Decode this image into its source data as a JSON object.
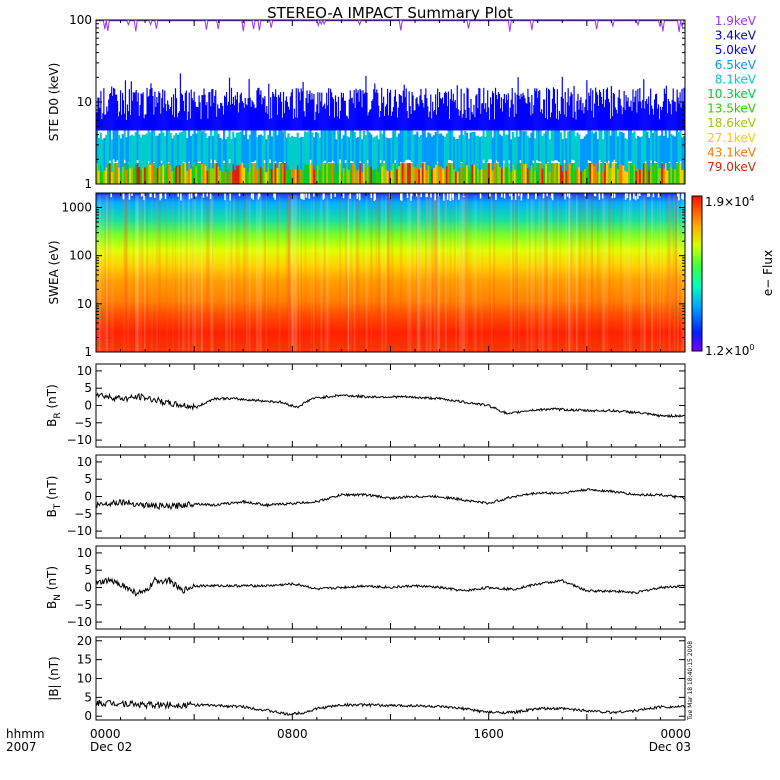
{
  "title": "STEREO-A IMPACT Summary Plot",
  "footer": {
    "left_top": "hhmm",
    "left_bottom": "2007"
  },
  "timestamp": "Tue Mar 18 18:40:15 2008",
  "chart_data": [
    {
      "type": "line",
      "id": "ste",
      "ylabel": "STE D0 (keV)",
      "scale": "log",
      "ylim": [
        1,
        100
      ],
      "yticks": [
        {
          "v": 1,
          "t": "1"
        },
        {
          "v": 10,
          "t": "10"
        },
        {
          "v": 100,
          "t": "100"
        }
      ],
      "legend": [
        {
          "name": "1.9keV",
          "color": "#9933ff",
          "level": 100
        },
        {
          "name": "3.4keV",
          "color": "#0000cc",
          "level": 15
        },
        {
          "name": "5.0keV",
          "color": "#0000ff",
          "level": 9
        },
        {
          "name": "6.5keV",
          "color": "#0099ff",
          "level": 3.2
        },
        {
          "name": "8.1keV",
          "color": "#00cccc",
          "level": 2.5
        },
        {
          "name": "10.3keV",
          "color": "#00cc33",
          "level": 2.0
        },
        {
          "name": "13.5keV",
          "color": "#33cc00",
          "level": 1.7
        },
        {
          "name": "18.6keV",
          "color": "#99cc00",
          "level": 1.5
        },
        {
          "name": "27.1keV",
          "color": "#ffcc00",
          "level": 1.3
        },
        {
          "name": "43.1keV",
          "color": "#ff7700",
          "level": 1.15
        },
        {
          "name": "79.0keV",
          "color": "#dd2200",
          "level": 1.05
        }
      ]
    },
    {
      "type": "heatmap",
      "id": "swea",
      "ylabel": "SWEA (eV)",
      "scale": "log",
      "ylim": [
        1,
        2000
      ],
      "yticks": [
        {
          "v": 1,
          "t": "1"
        },
        {
          "v": 10,
          "t": "10"
        },
        {
          "v": 100,
          "t": "100"
        },
        {
          "v": 1000,
          "t": "1000"
        }
      ],
      "colorbar": {
        "label": "e− Flux",
        "max_mant": "1.9×10",
        "max_exp": "4",
        "min_mant": "1.2×10",
        "min_exp": "0"
      }
    },
    {
      "type": "line",
      "id": "br",
      "ylabel_base": "B",
      "ylabel_sub": "R",
      "ylabel_unit": " (nT)",
      "ylim": [
        -12,
        12
      ],
      "yticks": [
        {
          "v": -10,
          "t": "−10"
        },
        {
          "v": -5,
          "t": "−5"
        },
        {
          "v": 0,
          "t": "0"
        },
        {
          "v": 5,
          "t": "5"
        },
        {
          "v": 10,
          "t": "10"
        }
      ],
      "x_hours": [
        0,
        0.5,
        1.2,
        1.8,
        2.5,
        3.0,
        3.6,
        4.1,
        4.8,
        5.5,
        6.5,
        7.5,
        8.2,
        8.8,
        10.0,
        11.0,
        12.5,
        14.0,
        15.0,
        16.0,
        16.8,
        17.5,
        18.5,
        20.0,
        21.0,
        22.0,
        23.0,
        24.0
      ],
      "values": [
        3.5,
        2.5,
        2.0,
        2.5,
        1.5,
        0.5,
        0.0,
        -0.5,
        2.0,
        2.0,
        1.5,
        1.0,
        -0.5,
        2.0,
        3.0,
        2.5,
        2.5,
        2.0,
        1.0,
        0.0,
        -2.5,
        -1.5,
        -1.0,
        -1.5,
        -1.5,
        -2.0,
        -3.0,
        -3.0
      ]
    },
    {
      "type": "line",
      "id": "bt",
      "ylabel_base": "B",
      "ylabel_sub": "T",
      "ylabel_unit": " (nT)",
      "ylim": [
        -12,
        12
      ],
      "yticks": [
        {
          "v": -10,
          "t": "−10"
        },
        {
          "v": -5,
          "t": "−5"
        },
        {
          "v": 0,
          "t": "0"
        },
        {
          "v": 5,
          "t": "5"
        },
        {
          "v": 10,
          "t": "10"
        }
      ],
      "x_hours": [
        0,
        0.5,
        1.0,
        2.0,
        3.0,
        4.0,
        4.8,
        6.0,
        7.0,
        8.0,
        9.0,
        10.0,
        11.0,
        12.0,
        13.0,
        14.0,
        15.0,
        16.0,
        17.0,
        18.0,
        19.0,
        20.0,
        21.0,
        22.0,
        23.0,
        24.0
      ],
      "values": [
        -2.5,
        -2.0,
        -1.5,
        -2.5,
        -3.0,
        -2.0,
        -2.5,
        -1.5,
        -2.5,
        -2.0,
        -1.5,
        0.5,
        0.5,
        -0.5,
        0.0,
        0.0,
        -1.0,
        -2.0,
        0.0,
        1.0,
        1.0,
        2.0,
        1.5,
        0.5,
        0.5,
        -0.5
      ]
    },
    {
      "type": "line",
      "id": "bn",
      "ylabel_base": "B",
      "ylabel_sub": "N",
      "ylabel_unit": " (nT)",
      "ylim": [
        -12,
        12
      ],
      "yticks": [
        {
          "v": -10,
          "t": "−10"
        },
        {
          "v": -5,
          "t": "−5"
        },
        {
          "v": 0,
          "t": "0"
        },
        {
          "v": 5,
          "t": "5"
        },
        {
          "v": 10,
          "t": "10"
        }
      ],
      "x_hours": [
        0,
        0.5,
        1.0,
        1.6,
        2.0,
        2.4,
        3.0,
        3.5,
        4.0,
        5.0,
        6.0,
        7.0,
        8.0,
        8.5,
        9.0,
        10.0,
        11.0,
        12.0,
        13.0,
        14.0,
        15.0,
        16.0,
        17.0,
        18.0,
        19.0,
        20.0,
        21.0,
        22.0,
        23.0,
        24.0
      ],
      "values": [
        1.0,
        2.0,
        1.0,
        -1.5,
        -1.5,
        2.0,
        2.0,
        -1.0,
        0.5,
        0.5,
        0.5,
        0.5,
        1.0,
        0.5,
        -0.5,
        0.0,
        0.5,
        0.0,
        0.5,
        0.0,
        -1.0,
        0.0,
        -0.5,
        1.0,
        2.0,
        -1.0,
        -1.0,
        -1.5,
        0.0,
        0.5
      ]
    },
    {
      "type": "line",
      "id": "bmag",
      "ylabel": "|B| (nT)",
      "ylim": [
        -1,
        21
      ],
      "yticks": [
        {
          "v": 0,
          "t": "0"
        },
        {
          "v": 5,
          "t": "5"
        },
        {
          "v": 10,
          "t": "10"
        },
        {
          "v": 15,
          "t": "15"
        },
        {
          "v": 20,
          "t": "20"
        }
      ],
      "x_hours": [
        0,
        1.0,
        2.0,
        3.0,
        4.0,
        5.0,
        6.0,
        7.0,
        7.8,
        8.5,
        9.0,
        10.0,
        11.0,
        12.0,
        13.0,
        14.0,
        15.0,
        16.0,
        17.0,
        18.0,
        19.0,
        20.0,
        21.0,
        22.0,
        23.0,
        24.0
      ],
      "values": [
        3.5,
        3.5,
        3.0,
        3.0,
        3.0,
        2.8,
        2.5,
        1.5,
        0.5,
        1.0,
        2.0,
        3.0,
        3.0,
        2.8,
        2.8,
        2.5,
        2.0,
        1.0,
        1.0,
        2.0,
        2.0,
        1.5,
        1.0,
        1.5,
        2.5,
        2.5
      ]
    }
  ],
  "x_axis": {
    "ticks": [
      {
        "hour": 0,
        "label": "0000",
        "sub": "Dec 02"
      },
      {
        "hour": 8,
        "label": "0800",
        "sub": ""
      },
      {
        "hour": 16,
        "label": "1600",
        "sub": ""
      },
      {
        "hour": 24,
        "label": "0000",
        "sub": "Dec 03"
      }
    ]
  },
  "colors": {
    "trace": "#000000",
    "frame": "#000000"
  }
}
